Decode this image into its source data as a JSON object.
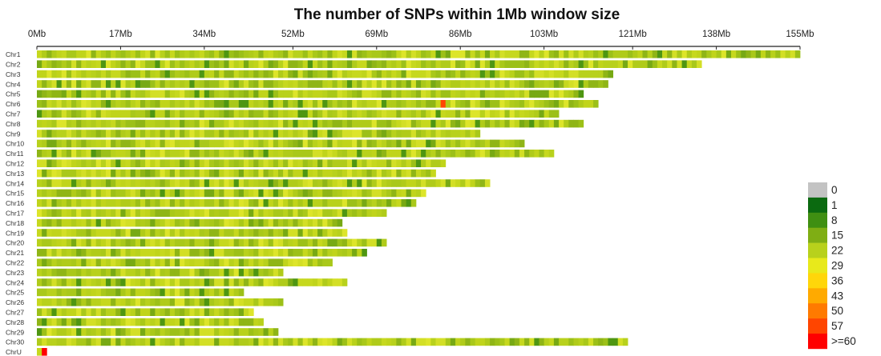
{
  "chart_data": {
    "type": "heatmap",
    "title": "The number of SNPs within 1Mb window size",
    "x_unit": "Mb",
    "xlim": [
      0,
      155
    ],
    "x_ticks": [
      {
        "value": 0,
        "label": "0Mb"
      },
      {
        "value": 17,
        "label": "17Mb"
      },
      {
        "value": 34,
        "label": "34Mb"
      },
      {
        "value": 52,
        "label": "52Mb"
      },
      {
        "value": 69,
        "label": "69Mb"
      },
      {
        "value": 86,
        "label": "86Mb"
      },
      {
        "value": 103,
        "label": "103Mb"
      },
      {
        "value": 121,
        "label": "121Mb"
      },
      {
        "value": 138,
        "label": "138Mb"
      },
      {
        "value": 155,
        "label": "155Mb"
      }
    ],
    "chromosomes": [
      {
        "name": "Chr1",
        "length_mb": 155
      },
      {
        "name": "Chr2",
        "length_mb": 135
      },
      {
        "name": "Chr3",
        "length_mb": 117
      },
      {
        "name": "Chr4",
        "length_mb": 116
      },
      {
        "name": "Chr5",
        "length_mb": 111
      },
      {
        "name": "Chr6",
        "length_mb": 114,
        "hotspots": [
          {
            "pos_mb": 82,
            "count": 57
          }
        ]
      },
      {
        "name": "Chr7",
        "length_mb": 106
      },
      {
        "name": "Chr8",
        "length_mb": 111
      },
      {
        "name": "Chr9",
        "length_mb": 90
      },
      {
        "name": "Chr10",
        "length_mb": 99
      },
      {
        "name": "Chr11",
        "length_mb": 105
      },
      {
        "name": "Chr12",
        "length_mb": 83
      },
      {
        "name": "Chr13",
        "length_mb": 81
      },
      {
        "name": "Chr14",
        "length_mb": 92
      },
      {
        "name": "Chr15",
        "length_mb": 79
      },
      {
        "name": "Chr16",
        "length_mb": 77
      },
      {
        "name": "Chr17",
        "length_mb": 71
      },
      {
        "name": "Chr18",
        "length_mb": 62
      },
      {
        "name": "Chr19",
        "length_mb": 63
      },
      {
        "name": "Chr20",
        "length_mb": 71
      },
      {
        "name": "Chr21",
        "length_mb": 67
      },
      {
        "name": "Chr22",
        "length_mb": 60
      },
      {
        "name": "Chr23",
        "length_mb": 50
      },
      {
        "name": "Chr24",
        "length_mb": 63
      },
      {
        "name": "Chr25",
        "length_mb": 42
      },
      {
        "name": "Chr26",
        "length_mb": 50
      },
      {
        "name": "Chr27",
        "length_mb": 44
      },
      {
        "name": "Chr28",
        "length_mb": 46
      },
      {
        "name": "Chr29",
        "length_mb": 49
      },
      {
        "name": "Chr30",
        "length_mb": 120
      },
      {
        "name": "ChrU",
        "length_mb": 2,
        "hotspots": [
          {
            "pos_mb": 1,
            "count": 60
          }
        ]
      }
    ],
    "legend": {
      "placement": "right",
      "bins": [
        {
          "label": "0",
          "color": "#c3c3c3"
        },
        {
          "label": "1",
          "color": "#0b6a10"
        },
        {
          "label": "8",
          "color": "#3f8f12"
        },
        {
          "label": "15",
          "color": "#7fae14"
        },
        {
          "label": "22",
          "color": "#b8d11c"
        },
        {
          "label": "29",
          "color": "#e8e91b"
        },
        {
          "label": "36",
          "color": "#ffd60a"
        },
        {
          "label": "43",
          "color": "#ffaa00"
        },
        {
          "label": "50",
          "color": "#ff7a00"
        },
        {
          "label": "57",
          "color": "#ff4500"
        },
        {
          "label": ">=60",
          "color": "#ff0000"
        }
      ]
    }
  }
}
